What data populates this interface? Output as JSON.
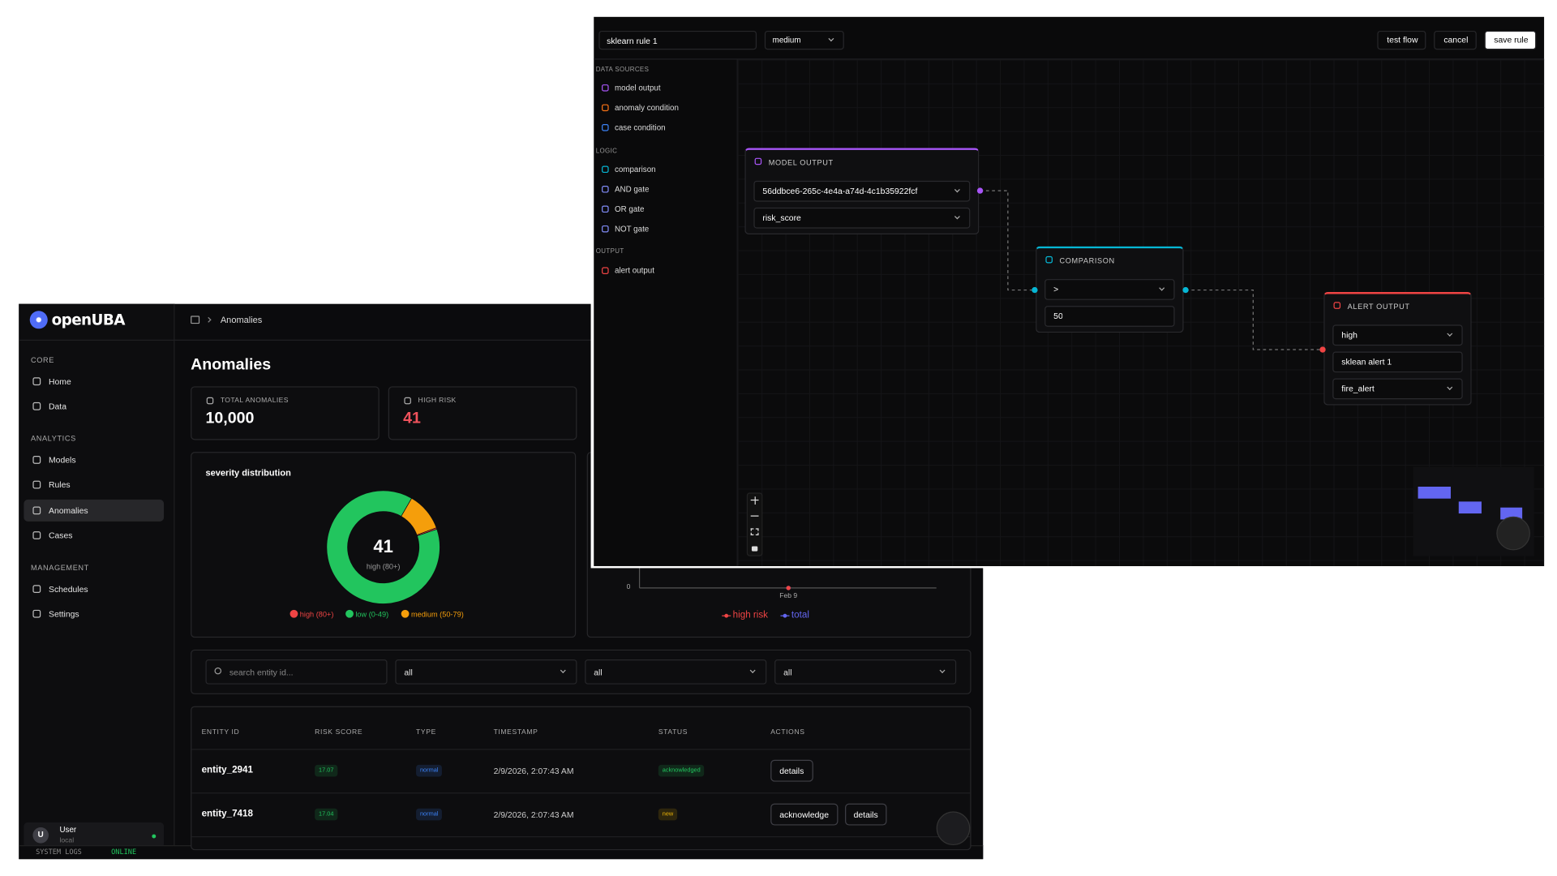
{
  "back_window": {
    "brand": "openUBA",
    "breadcrumb": "Anomalies",
    "nav": [
      {
        "section": "CORE",
        "items": [
          "Home",
          "Data"
        ]
      },
      {
        "section": "ANALYTICS",
        "items": [
          "Models",
          "Rules",
          "Anomalies",
          "Cases"
        ]
      },
      {
        "section": "MANAGEMENT",
        "items": [
          "Schedules",
          "Settings"
        ]
      }
    ],
    "active_nav": "Anomalies",
    "user": {
      "initial": "U",
      "name": "User",
      "role": "local"
    },
    "status_bar": {
      "logs": "SYSTEM LOGS",
      "status": "ONLINE"
    },
    "title": "Anomalies",
    "stats": [
      {
        "label": "TOTAL ANOMALIES",
        "value": "10,000",
        "color": "#ffffff"
      },
      {
        "label": "HIGH RISK",
        "value": "41",
        "color": "#f0525c"
      }
    ],
    "filters": {
      "search_placeholder": "search entity id...",
      "selects": [
        "all",
        "all",
        "all"
      ]
    },
    "table": {
      "headers": [
        "ENTITY ID",
        "RISK SCORE",
        "TYPE",
        "TIMESTAMP",
        "STATUS",
        "ACTIONS"
      ],
      "rows": [
        {
          "entity": "entity_2941",
          "score": "17.07",
          "score_color": "#22c55e",
          "type": "normal",
          "type_color": "#3b82f6",
          "timestamp": "2/9/2026, 2:07:43 AM",
          "status": "acknowledged",
          "status_color": "#22c55e",
          "actions": [
            "details"
          ]
        },
        {
          "entity": "entity_7418",
          "score": "17.04",
          "score_color": "#22c55e",
          "type": "normal",
          "type_color": "#3b82f6",
          "timestamp": "2/9/2026, 2:07:43 AM",
          "status": "new",
          "status_color": "#eab308",
          "actions": [
            "acknowledge",
            "details"
          ]
        }
      ]
    }
  },
  "chart_data": [
    {
      "type": "pie",
      "title": "severity distribution",
      "categories": [
        "high (80+)",
        "low (0-49)",
        "medium (50-79)"
      ],
      "values": [
        41,
        8850,
        1109
      ],
      "colors": [
        "#ef4444",
        "#22c55e",
        "#f59e0b"
      ],
      "center_value": 41,
      "center_label": "high (80+)"
    },
    {
      "type": "line",
      "x": [
        "Feb 9"
      ],
      "ylim": [
        0,
        50
      ],
      "yticks": [
        0
      ],
      "series": [
        {
          "name": "total",
          "color": "#6366f1",
          "values": [
            0
          ]
        },
        {
          "name": "high risk",
          "color": "#ef4444",
          "values": [
            0
          ]
        }
      ]
    }
  ],
  "front_window": {
    "rule_name": "sklearn rule 1",
    "severity": "medium",
    "buttons": [
      "test flow",
      "cancel",
      "save rule"
    ],
    "palette": [
      {
        "section": "DATA SOURCES",
        "items": [
          {
            "label": "model output",
            "color": "#a855f7"
          },
          {
            "label": "anomaly condition",
            "color": "#f97316"
          },
          {
            "label": "case condition",
            "color": "#3b82f6"
          }
        ]
      },
      {
        "section": "LOGIC",
        "items": [
          {
            "label": "comparison",
            "color": "#06b6d4"
          },
          {
            "label": "AND gate",
            "color": "#818cf8"
          },
          {
            "label": "OR gate",
            "color": "#818cf8"
          },
          {
            "label": "NOT gate",
            "color": "#818cf8"
          }
        ]
      },
      {
        "section": "OUTPUT",
        "items": [
          {
            "label": "alert output",
            "color": "#ef4444"
          }
        ]
      }
    ],
    "nodes": [
      {
        "title": "MODEL OUTPUT",
        "color": "#a855f7",
        "fields": [
          {
            "value": "56ddbce6-265c-4e4a-a74d-4c1b35922fcf",
            "kind": "select"
          },
          {
            "value": "risk_score",
            "kind": "select"
          }
        ]
      },
      {
        "title": "COMPARISON",
        "color": "#06b6d4",
        "fields": [
          {
            "value": ">",
            "kind": "select"
          },
          {
            "value": "50",
            "kind": "input"
          }
        ]
      },
      {
        "title": "ALERT OUTPUT",
        "color": "#ef4444",
        "fields": [
          {
            "value": "high",
            "kind": "select"
          },
          {
            "value": "sklean alert 1",
            "kind": "input"
          },
          {
            "value": "fire_alert",
            "kind": "select"
          }
        ]
      }
    ]
  }
}
